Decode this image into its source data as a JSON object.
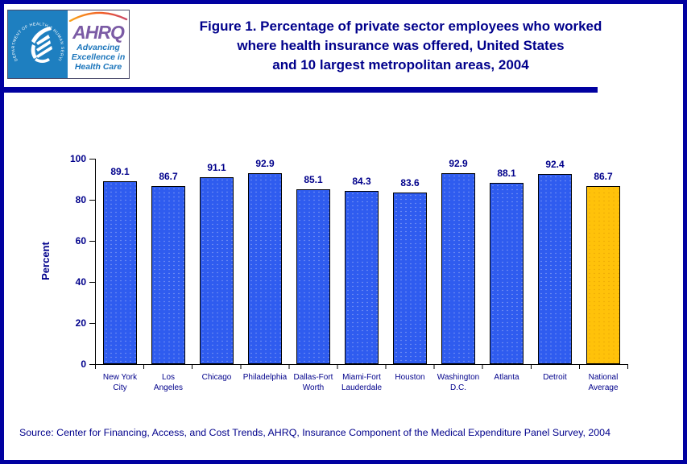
{
  "page": {
    "background": "#FFFFFF",
    "border_color": "#0000A0"
  },
  "header": {
    "logo": {
      "hhs_seal": "hhs-eagle-seal",
      "hhs_ring_text": "DEPARTMENT OF HEALTH & HUMAN SERVICES • USA",
      "ahrq_acronym": "AHRQ",
      "tagline_line1": "Advancing",
      "tagline_line2": "Excellence in",
      "tagline_line3": "Health Care"
    },
    "title_line1": "Figure 1. Percentage of private sector employees who worked",
    "title_line2": "where health insurance was offered, United States",
    "title_line3": "and 10 largest metropolitan areas, 2004",
    "title_color": "#00008B"
  },
  "chart_data": {
    "type": "bar",
    "title": "Figure 1. Percentage of private sector employees who worked where health insurance was offered, United States and 10 largest metropolitan areas, 2004",
    "xlabel": "",
    "ylabel": "Percent",
    "ylim": [
      0,
      100
    ],
    "y_ticks": [
      0,
      20,
      40,
      60,
      80,
      100
    ],
    "grid": false,
    "legend": false,
    "categories": [
      "New York City",
      "Los Angeles",
      "Chicago",
      "Philadelphia",
      "Dallas-Fort Worth",
      "Miami-Fort Lauderdale",
      "Houston",
      "Washington D.C.",
      "Atlanta",
      "Detroit",
      "National Average"
    ],
    "category_label_lines": [
      [
        "New York",
        "City"
      ],
      [
        "Los",
        "Angeles"
      ],
      [
        "Chicago"
      ],
      [
        "Philadelphia"
      ],
      [
        "Dallas-Fort",
        "Worth"
      ],
      [
        "Miami-Fort",
        "Lauderdale"
      ],
      [
        "Houston"
      ],
      [
        "Washington",
        "D.C."
      ],
      [
        "Atlanta"
      ],
      [
        "Detroit"
      ],
      [
        "National",
        "Average"
      ]
    ],
    "values": [
      89.1,
      86.7,
      91.1,
      92.9,
      85.1,
      84.3,
      83.6,
      92.9,
      88.1,
      92.4,
      86.7
    ],
    "bar_color": "#2F5CEF",
    "highlight_category": "National Average",
    "highlight_color": "#FFC20A",
    "value_label_color": "#00008B",
    "axis_color": "#000000"
  },
  "footer": {
    "source": "Source: Center for Financing, Access, and Cost Trends, AHRQ, Insurance Component of the Medical Expenditure Panel Survey, 2004"
  }
}
